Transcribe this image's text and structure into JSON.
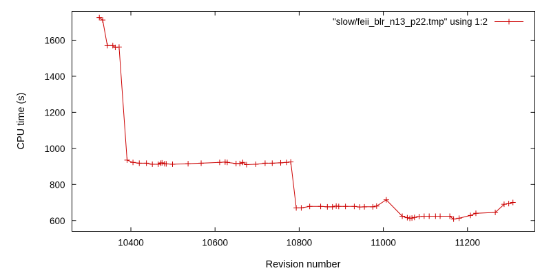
{
  "chart_data": {
    "type": "line",
    "title": "",
    "xlabel": "Revision number",
    "ylabel": "CPU time (s)",
    "xlim": [
      10260,
      11360
    ],
    "ylim": [
      540,
      1760
    ],
    "xticks": [
      10400,
      10600,
      10800,
      11000,
      11200
    ],
    "yticks": [
      600,
      800,
      1000,
      1200,
      1400,
      1600
    ],
    "grid": false,
    "legend_position": "top-right",
    "series": [
      {
        "name": "\"slow/feii_blr_n13_p22.tmp\" using 1:2",
        "color": "#cc0000",
        "marker": "plus",
        "x": [
          10325,
          10333,
          10344,
          10357,
          10363,
          10372,
          10391,
          10405,
          10420,
          10437,
          10451,
          10465,
          10471,
          10474,
          10480,
          10484,
          10499,
          10536,
          10567,
          10611,
          10624,
          10629,
          10650,
          10659,
          10666,
          10675,
          10697,
          10719,
          10736,
          10756,
          10770,
          10780,
          10793,
          10805,
          10825,
          10851,
          10867,
          10879,
          10888,
          10894,
          10910,
          10931,
          10944,
          10955,
          10975,
          10984,
          11007,
          11045,
          11057,
          11063,
          11068,
          11074,
          11085,
          11097,
          11109,
          11124,
          11135,
          11158,
          11167,
          11180,
          11207,
          11220,
          11266,
          11287,
          11298,
          11308
        ],
        "y": [
          1725,
          1712,
          1570,
          1570,
          1560,
          1562,
          935,
          922,
          918,
          918,
          912,
          912,
          918,
          920,
          915,
          914,
          912,
          915,
          918,
          922,
          924,
          922,
          916,
          916,
          922,
          910,
          912,
          918,
          918,
          920,
          922,
          925,
          670,
          670,
          678,
          678,
          676,
          676,
          680,
          678,
          678,
          678,
          675,
          676,
          676,
          680,
          715,
          624,
          616,
          612,
          614,
          617,
          622,
          624,
          624,
          624,
          624,
          624,
          608,
          613,
          628,
          640,
          645,
          690,
          694,
          700
        ]
      }
    ]
  }
}
